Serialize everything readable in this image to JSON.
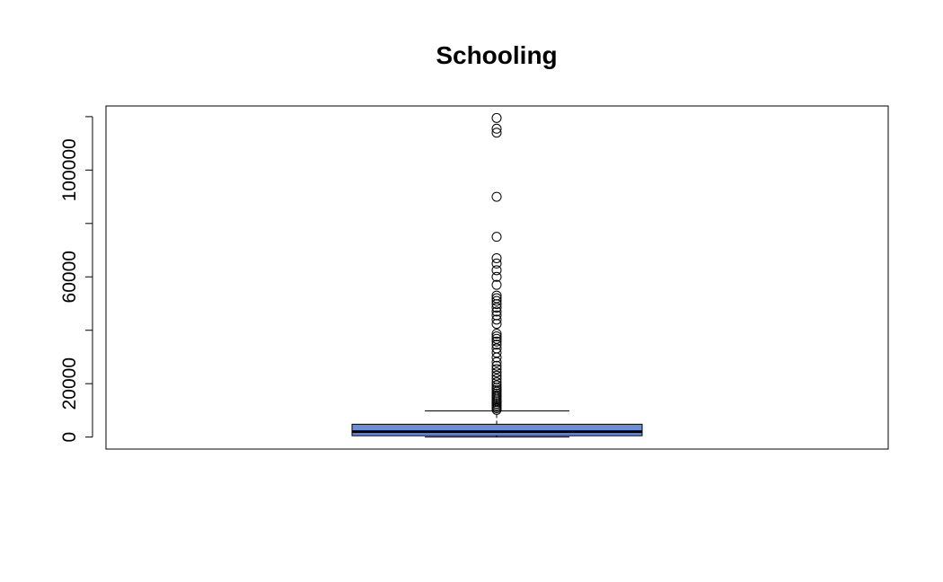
{
  "chart_data": {
    "type": "box",
    "title": "Schooling",
    "xlabel": "",
    "ylabel": "",
    "ylim": [
      -4500,
      124000
    ],
    "yticks": [
      0,
      20000,
      40000,
      60000,
      80000,
      100000,
      120000
    ],
    "ytick_labels": [
      "0",
      "20000",
      "",
      "60000",
      "",
      "100000",
      ""
    ],
    "box": {
      "whisker_low": 0,
      "q1": 500,
      "median": 2000,
      "q3": 4800,
      "whisker_high": 9800
    },
    "outliers": [
      10200,
      10800,
      11300,
      11900,
      12500,
      13100,
      13700,
      14300,
      15000,
      15600,
      16300,
      17000,
      17700,
      18500,
      19400,
      20500,
      21800,
      23000,
      24200,
      25500,
      26700,
      28100,
      29800,
      31600,
      33200,
      34600,
      35800,
      36800,
      37700,
      38700,
      42400,
      44000,
      45600,
      47000,
      48500,
      49800,
      51000,
      52000,
      53000,
      57000,
      60000,
      62500,
      65000,
      67000,
      75000,
      90000,
      114000,
      115500,
      119500
    ],
    "box_color": "#6a8fd8",
    "grid": false,
    "legend": "none"
  }
}
